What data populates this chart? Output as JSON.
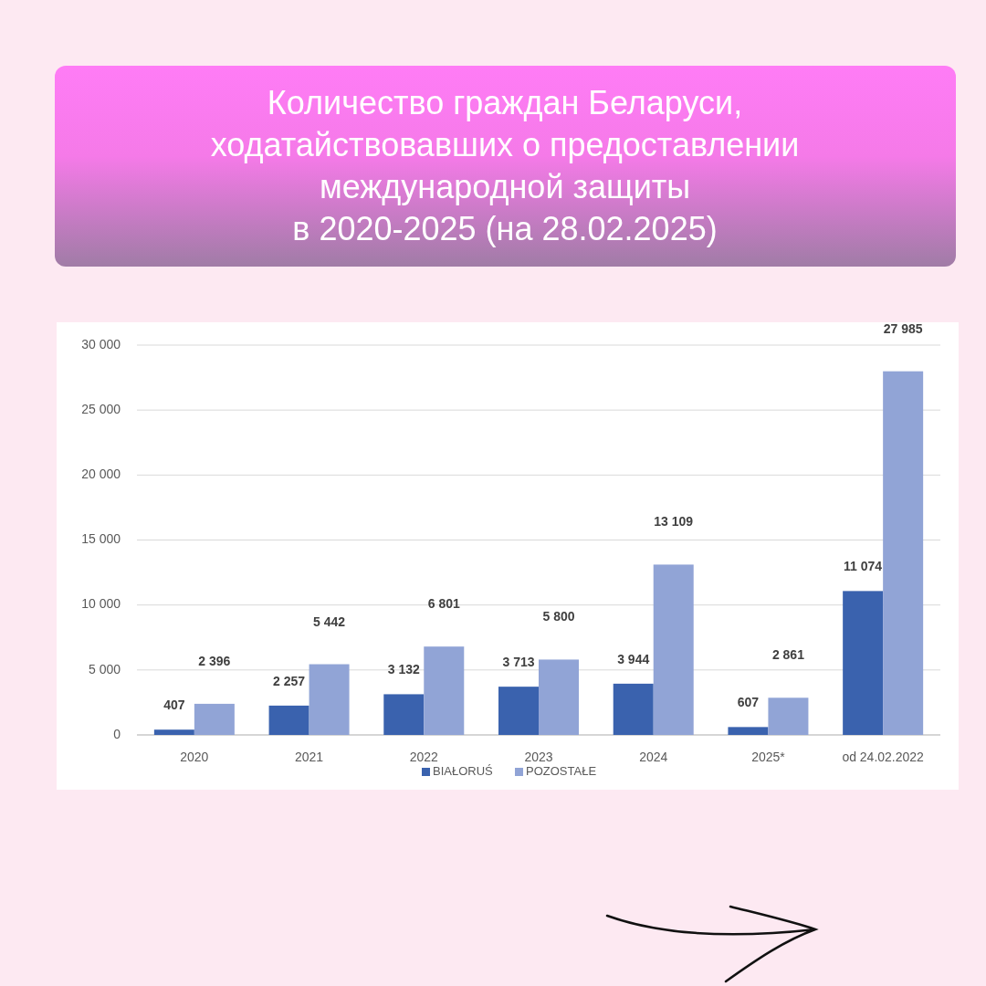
{
  "chart_data": {
    "type": "bar",
    "title": "Количество граждан Беларуси,\nходатайствовавших о предоставлении\nмеждународной защиты\nв 2020-2025 (на 28.02.2025)",
    "categories": [
      "2020",
      "2021",
      "2022",
      "2023",
      "2024",
      "2025*",
      "od 24.02.2022"
    ],
    "series": [
      {
        "name": "BIAŁORUŚ",
        "color": "#3a62ae",
        "values": [
          407,
          2257,
          3132,
          3713,
          3944,
          607,
          11074
        ],
        "value_labels": [
          "407",
          "2 257",
          "3 132",
          "3 713",
          "3 944",
          "607",
          "11 074"
        ]
      },
      {
        "name": "POZOSTAŁE",
        "color": "#91a4d6",
        "values": [
          2396,
          5442,
          6801,
          5800,
          13109,
          2861,
          27985
        ],
        "value_labels": [
          "2 396",
          "5 442",
          "6 801",
          "5 800",
          "13 109",
          "2 861",
          "27 985"
        ]
      }
    ],
    "ylim": [
      0,
      30000
    ],
    "yticks": [
      {
        "value": 0,
        "label": "0"
      },
      {
        "value": 5000,
        "label": "5 000"
      },
      {
        "value": 10000,
        "label": "10 000"
      },
      {
        "value": 15000,
        "label": "15 000"
      },
      {
        "value": 20000,
        "label": "20 000"
      },
      {
        "value": 25000,
        "label": "25 000"
      },
      {
        "value": 30000,
        "label": "30 000"
      }
    ],
    "grid": "y",
    "legend": "bottom"
  }
}
